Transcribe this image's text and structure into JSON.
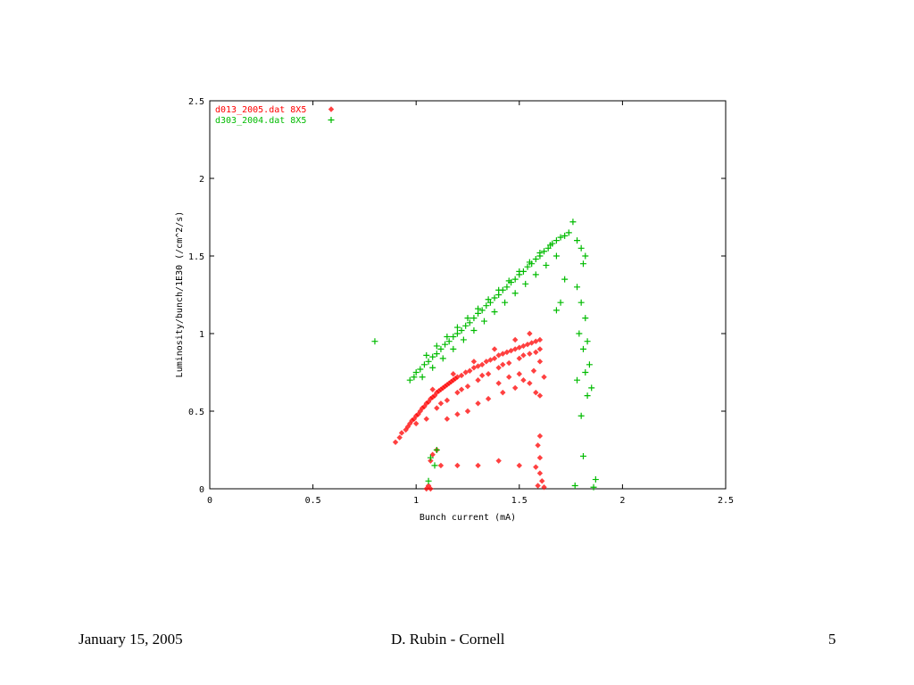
{
  "chart_data": {
    "type": "scatter",
    "xlabel": "Bunch current (mA)",
    "ylabel": "Luminosity/bunch/1E30 (/cm^2/s)",
    "xlim": [
      0,
      2.5
    ],
    "ylim": [
      0,
      2.5
    ],
    "x_ticks": [
      "0",
      "0.5",
      "1",
      "1.5",
      "2",
      "2.5"
    ],
    "y_ticks": [
      "0",
      "0.5",
      "1",
      "1.5",
      "2",
      "2.5"
    ],
    "grid": false,
    "legend_position": "top-left",
    "series": [
      {
        "name": "d013_2005.dat 8X5",
        "color": "#ff0000",
        "marker": "diamond",
        "points": [
          [
            0.9,
            0.3
          ],
          [
            0.92,
            0.33
          ],
          [
            0.93,
            0.36
          ],
          [
            0.95,
            0.38
          ],
          [
            0.96,
            0.4
          ],
          [
            0.97,
            0.42
          ],
          [
            0.98,
            0.44
          ],
          [
            0.99,
            0.45
          ],
          [
            1.0,
            0.47
          ],
          [
            1.01,
            0.48
          ],
          [
            1.02,
            0.5
          ],
          [
            1.03,
            0.52
          ],
          [
            1.04,
            0.53
          ],
          [
            1.05,
            0.55
          ],
          [
            1.06,
            0.56
          ],
          [
            1.07,
            0.58
          ],
          [
            1.08,
            0.59
          ],
          [
            1.09,
            0.6
          ],
          [
            1.1,
            0.62
          ],
          [
            1.11,
            0.63
          ],
          [
            1.12,
            0.64
          ],
          [
            1.13,
            0.65
          ],
          [
            1.14,
            0.66
          ],
          [
            1.15,
            0.67
          ],
          [
            1.16,
            0.68
          ],
          [
            1.17,
            0.69
          ],
          [
            1.18,
            0.7
          ],
          [
            1.19,
            0.71
          ],
          [
            1.2,
            0.72
          ],
          [
            1.22,
            0.73
          ],
          [
            1.24,
            0.75
          ],
          [
            1.26,
            0.76
          ],
          [
            1.28,
            0.78
          ],
          [
            1.3,
            0.79
          ],
          [
            1.32,
            0.8
          ],
          [
            1.34,
            0.82
          ],
          [
            1.36,
            0.83
          ],
          [
            1.38,
            0.84
          ],
          [
            1.4,
            0.86
          ],
          [
            1.42,
            0.87
          ],
          [
            1.44,
            0.88
          ],
          [
            1.46,
            0.89
          ],
          [
            1.48,
            0.9
          ],
          [
            1.5,
            0.91
          ],
          [
            1.52,
            0.92
          ],
          [
            1.54,
            0.93
          ],
          [
            1.56,
            0.94
          ],
          [
            1.58,
            0.95
          ],
          [
            1.6,
            0.96
          ],
          [
            1.05,
            0.45
          ],
          [
            1.1,
            0.52
          ],
          [
            1.15,
            0.57
          ],
          [
            1.2,
            0.62
          ],
          [
            1.25,
            0.66
          ],
          [
            1.3,
            0.7
          ],
          [
            1.35,
            0.74
          ],
          [
            1.4,
            0.78
          ],
          [
            1.45,
            0.81
          ],
          [
            1.5,
            0.84
          ],
          [
            1.55,
            0.87
          ],
          [
            1.0,
            0.42
          ],
          [
            1.12,
            0.55
          ],
          [
            1.22,
            0.64
          ],
          [
            1.32,
            0.73
          ],
          [
            1.42,
            0.8
          ],
          [
            1.52,
            0.86
          ],
          [
            1.58,
            0.88
          ],
          [
            1.6,
            0.9
          ],
          [
            1.08,
            0.64
          ],
          [
            1.18,
            0.74
          ],
          [
            1.28,
            0.82
          ],
          [
            1.38,
            0.9
          ],
          [
            1.48,
            0.96
          ],
          [
            1.55,
            1.0
          ],
          [
            1.25,
            0.5
          ],
          [
            1.3,
            0.55
          ],
          [
            1.35,
            0.58
          ],
          [
            1.42,
            0.62
          ],
          [
            1.48,
            0.65
          ],
          [
            1.52,
            0.7
          ],
          [
            1.55,
            0.68
          ],
          [
            1.58,
            0.62
          ],
          [
            1.6,
            0.6
          ],
          [
            1.62,
            0.72
          ],
          [
            1.6,
            0.82
          ],
          [
            1.57,
            0.76
          ],
          [
            1.5,
            0.74
          ],
          [
            1.45,
            0.72
          ],
          [
            1.4,
            0.68
          ],
          [
            1.2,
            0.48
          ],
          [
            1.15,
            0.45
          ],
          [
            1.1,
            0.25
          ],
          [
            1.08,
            0.22
          ],
          [
            1.07,
            0.18
          ],
          [
            1.12,
            0.15
          ],
          [
            1.2,
            0.15
          ],
          [
            1.3,
            0.15
          ],
          [
            1.4,
            0.18
          ],
          [
            1.5,
            0.15
          ],
          [
            1.58,
            0.14
          ],
          [
            1.6,
            0.34
          ],
          [
            1.59,
            0.28
          ],
          [
            1.6,
            0.2
          ],
          [
            1.6,
            0.1
          ],
          [
            1.61,
            0.05
          ],
          [
            1.59,
            0.02
          ],
          [
            1.62,
            0.01
          ],
          [
            1.06,
            0.02
          ],
          [
            1.07,
            0.0
          ],
          [
            1.05,
            0.0
          ]
        ]
      },
      {
        "name": "d303_2004.dat 8X5",
        "color": "#00bb00",
        "marker": "plus",
        "points": [
          [
            0.8,
            0.95
          ],
          [
            0.99,
            0.72
          ],
          [
            1.0,
            0.75
          ],
          [
            1.02,
            0.77
          ],
          [
            1.04,
            0.8
          ],
          [
            1.06,
            0.82
          ],
          [
            1.08,
            0.85
          ],
          [
            1.1,
            0.87
          ],
          [
            1.12,
            0.9
          ],
          [
            1.14,
            0.93
          ],
          [
            1.16,
            0.95
          ],
          [
            1.18,
            0.98
          ],
          [
            1.2,
            1.0
          ],
          [
            1.22,
            1.02
          ],
          [
            1.24,
            1.05
          ],
          [
            1.26,
            1.07
          ],
          [
            1.28,
            1.1
          ],
          [
            1.3,
            1.13
          ],
          [
            1.32,
            1.15
          ],
          [
            1.34,
            1.18
          ],
          [
            1.36,
            1.2
          ],
          [
            1.38,
            1.23
          ],
          [
            1.4,
            1.25
          ],
          [
            1.42,
            1.28
          ],
          [
            1.44,
            1.3
          ],
          [
            1.46,
            1.33
          ],
          [
            1.48,
            1.35
          ],
          [
            1.5,
            1.38
          ],
          [
            1.52,
            1.4
          ],
          [
            1.54,
            1.43
          ],
          [
            1.56,
            1.45
          ],
          [
            1.58,
            1.48
          ],
          [
            1.6,
            1.5
          ],
          [
            1.62,
            1.53
          ],
          [
            1.64,
            1.55
          ],
          [
            1.66,
            1.58
          ],
          [
            1.68,
            1.6
          ],
          [
            1.7,
            1.62
          ],
          [
            1.72,
            1.63
          ],
          [
            1.74,
            1.65
          ],
          [
            1.76,
            1.72
          ],
          [
            1.05,
            0.86
          ],
          [
            1.1,
            0.92
          ],
          [
            1.15,
            0.98
          ],
          [
            1.2,
            1.04
          ],
          [
            1.25,
            1.1
          ],
          [
            1.3,
            1.16
          ],
          [
            1.35,
            1.22
          ],
          [
            1.4,
            1.28
          ],
          [
            1.45,
            1.34
          ],
          [
            1.5,
            1.4
          ],
          [
            1.55,
            1.46
          ],
          [
            1.6,
            1.52
          ],
          [
            1.65,
            1.57
          ],
          [
            1.03,
            0.72
          ],
          [
            1.08,
            0.78
          ],
          [
            1.13,
            0.84
          ],
          [
            1.18,
            0.9
          ],
          [
            1.23,
            0.96
          ],
          [
            1.28,
            1.02
          ],
          [
            1.33,
            1.08
          ],
          [
            1.38,
            1.14
          ],
          [
            1.43,
            1.2
          ],
          [
            1.48,
            1.26
          ],
          [
            1.53,
            1.32
          ],
          [
            1.58,
            1.38
          ],
          [
            1.63,
            1.44
          ],
          [
            1.68,
            1.5
          ],
          [
            0.97,
            0.7
          ],
          [
            1.78,
            1.6
          ],
          [
            1.8,
            1.55
          ],
          [
            1.82,
            1.5
          ],
          [
            1.81,
            1.45
          ],
          [
            1.78,
            1.3
          ],
          [
            1.8,
            1.2
          ],
          [
            1.82,
            1.1
          ],
          [
            1.79,
            1.0
          ],
          [
            1.83,
            0.95
          ],
          [
            1.81,
            0.9
          ],
          [
            1.84,
            0.8
          ],
          [
            1.82,
            0.75
          ],
          [
            1.78,
            0.7
          ],
          [
            1.85,
            0.65
          ],
          [
            1.83,
            0.6
          ],
          [
            1.8,
            0.47
          ],
          [
            1.81,
            0.21
          ],
          [
            1.87,
            0.06
          ],
          [
            1.86,
            0.01
          ],
          [
            1.77,
            0.02
          ],
          [
            1.72,
            1.35
          ],
          [
            1.7,
            1.2
          ],
          [
            1.68,
            1.15
          ],
          [
            1.1,
            0.25
          ],
          [
            1.07,
            0.2
          ],
          [
            1.09,
            0.15
          ],
          [
            1.06,
            0.05
          ]
        ]
      }
    ]
  },
  "footer": {
    "date": "January 15, 2005",
    "author": "D. Rubin - Cornell",
    "page": "5"
  }
}
